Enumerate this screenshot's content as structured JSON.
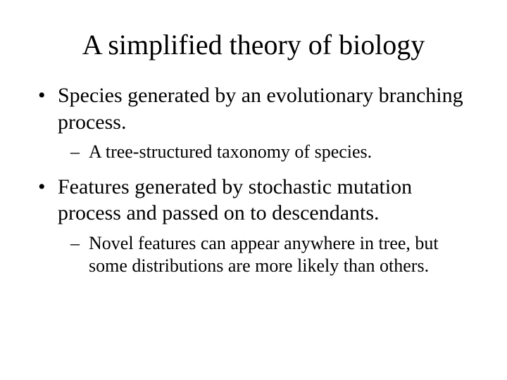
{
  "title": "A simplified theory of biology",
  "bullets": [
    {
      "text": "Species generated by an evolutionary branching process.",
      "sub": [
        "A tree-structured taxonomy of species."
      ]
    },
    {
      "text": "Features generated by stochastic mutation process and passed on to descendants.",
      "sub": [
        "Novel features can appear anywhere in tree, but some distributions are more likely than others."
      ]
    }
  ],
  "style": {
    "background_color": "#ffffff",
    "text_color": "#000000",
    "font_family": "Times New Roman",
    "title_fontsize": 40,
    "bullet_fontsize": 30,
    "subbullet_fontsize": 26
  }
}
